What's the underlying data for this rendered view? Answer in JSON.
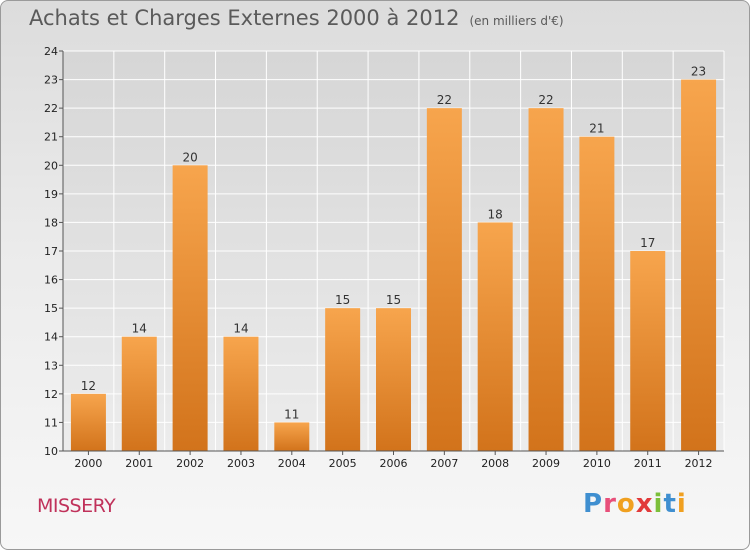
{
  "header": {
    "title": "Achats et Charges Externes 2000 à 2012",
    "unit": "(en milliers d'€)"
  },
  "footer": {
    "commune": "MISSERY",
    "brand": "Proxiti",
    "brand_letters": [
      {
        "ch": "P",
        "color": "#3f8fd0"
      },
      {
        "ch": "r",
        "color": "#e84f7a"
      },
      {
        "ch": "o",
        "color": "#f0a020"
      },
      {
        "ch": "x",
        "color": "#e23a3a"
      },
      {
        "ch": "i",
        "color": "#7cbf3a"
      },
      {
        "ch": "t",
        "color": "#3f8fd0"
      },
      {
        "ch": "i",
        "color": "#f0a020"
      }
    ]
  },
  "chart_data": {
    "type": "bar",
    "title": "Achats et Charges Externes 2000 à 2012",
    "subtitle": "(en milliers d'€)",
    "categories": [
      "2000",
      "2001",
      "2002",
      "2003",
      "2004",
      "2005",
      "2006",
      "2007",
      "2008",
      "2009",
      "2010",
      "2011",
      "2012"
    ],
    "values": [
      12,
      14,
      20,
      14,
      11,
      15,
      15,
      22,
      18,
      22,
      21,
      17,
      23
    ],
    "ylim": [
      10,
      24
    ],
    "yticks": [
      10,
      11,
      12,
      13,
      14,
      15,
      16,
      17,
      18,
      19,
      20,
      21,
      22,
      23,
      24
    ],
    "grid": true,
    "colors": {
      "bar_top": "#f7a54d",
      "bar_bottom": "#d2731b",
      "grid": "#ffffff"
    }
  }
}
